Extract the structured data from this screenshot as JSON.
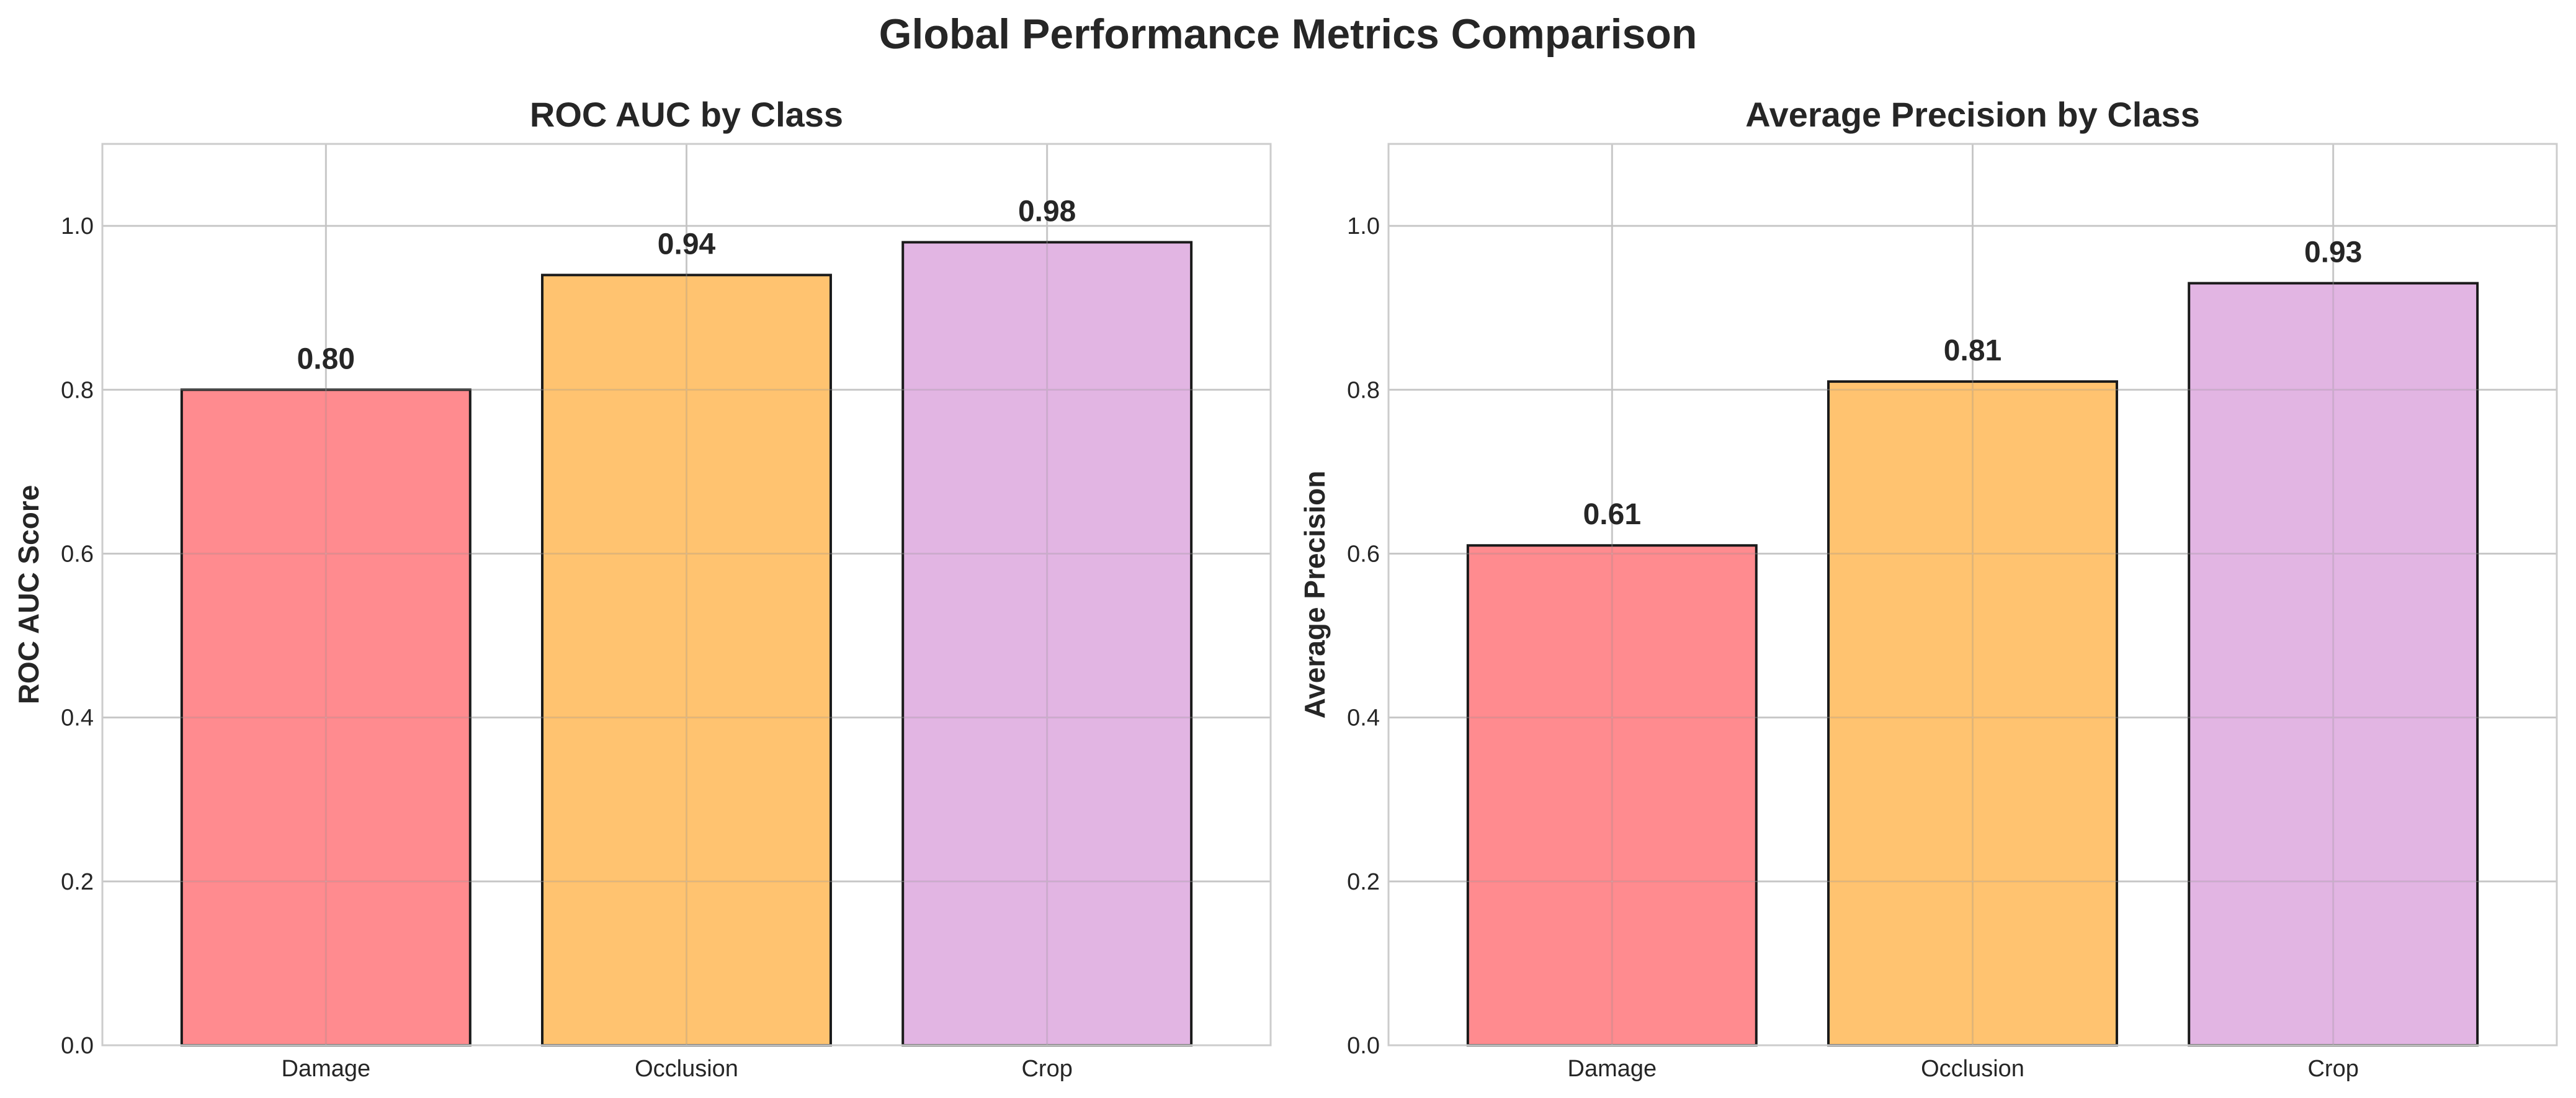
{
  "page": {
    "title": "Global Performance Metrics Comparison"
  },
  "chart_data": [
    {
      "type": "bar",
      "title": "ROC AUC by Class",
      "xlabel": "",
      "ylabel": "ROC AUC Score",
      "categories": [
        "Damage",
        "Occlusion",
        "Crop"
      ],
      "values": [
        0.8,
        0.94,
        0.98
      ],
      "value_labels": [
        "0.80",
        "0.94",
        "0.98"
      ],
      "colors": [
        "#ff5a5f",
        "#ffa933",
        "#d595d7"
      ],
      "ylim": [
        0,
        1.1
      ],
      "yticks": [
        0.0,
        0.2,
        0.4,
        0.6,
        0.8,
        1.0
      ],
      "ytick_labels": [
        "0.0",
        "0.2",
        "0.4",
        "0.6",
        "0.8",
        "1.0"
      ],
      "grid": true,
      "legend": "none"
    },
    {
      "type": "bar",
      "title": "Average Precision by Class",
      "xlabel": "",
      "ylabel": "Average Precision",
      "categories": [
        "Damage",
        "Occlusion",
        "Crop"
      ],
      "values": [
        0.61,
        0.81,
        0.93
      ],
      "value_labels": [
        "0.61",
        "0.81",
        "0.93"
      ],
      "colors": [
        "#ff5a5f",
        "#ffa933",
        "#d595d7"
      ],
      "ylim": [
        0,
        1.1
      ],
      "yticks": [
        0.0,
        0.2,
        0.4,
        0.6,
        0.8,
        1.0
      ],
      "ytick_labels": [
        "0.0",
        "0.2",
        "0.4",
        "0.6",
        "0.8",
        "1.0"
      ],
      "grid": true,
      "legend": "none"
    }
  ]
}
